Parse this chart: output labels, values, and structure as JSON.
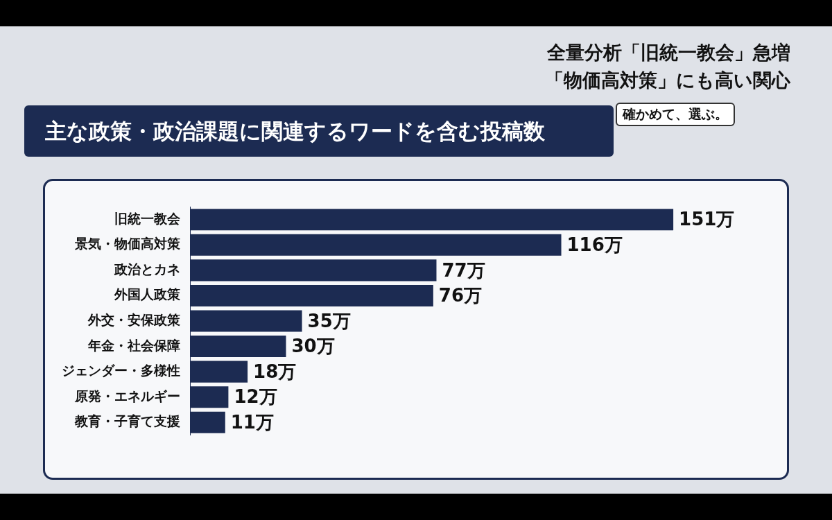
{
  "chart_data": {
    "type": "bar",
    "orientation": "horizontal",
    "title": "主な政策・政治課題に関連するワードを含む投稿数",
    "annotations": [
      "全量分析「旧統一教会」急増",
      "「物価高対策」にも高い関心",
      "確かめて、選ぶ。"
    ],
    "categories": [
      "旧統一教会",
      "景気・物価高対策",
      "政治とカネ",
      "外国人政策",
      "外交・安保政策",
      "年金・社会保障",
      "ジェンダー・多様性",
      "原発・エネルギー",
      "教育・子育て支援"
    ],
    "values": [
      151,
      116,
      77,
      76,
      35,
      30,
      18,
      12,
      11
    ],
    "value_labels": [
      "151万",
      "116万",
      "77万",
      "76万",
      "35万",
      "30万",
      "18万",
      "12万",
      "11万"
    ],
    "color": "#1c2b52",
    "grid": false,
    "legend": false,
    "tick_labels": "y"
  }
}
